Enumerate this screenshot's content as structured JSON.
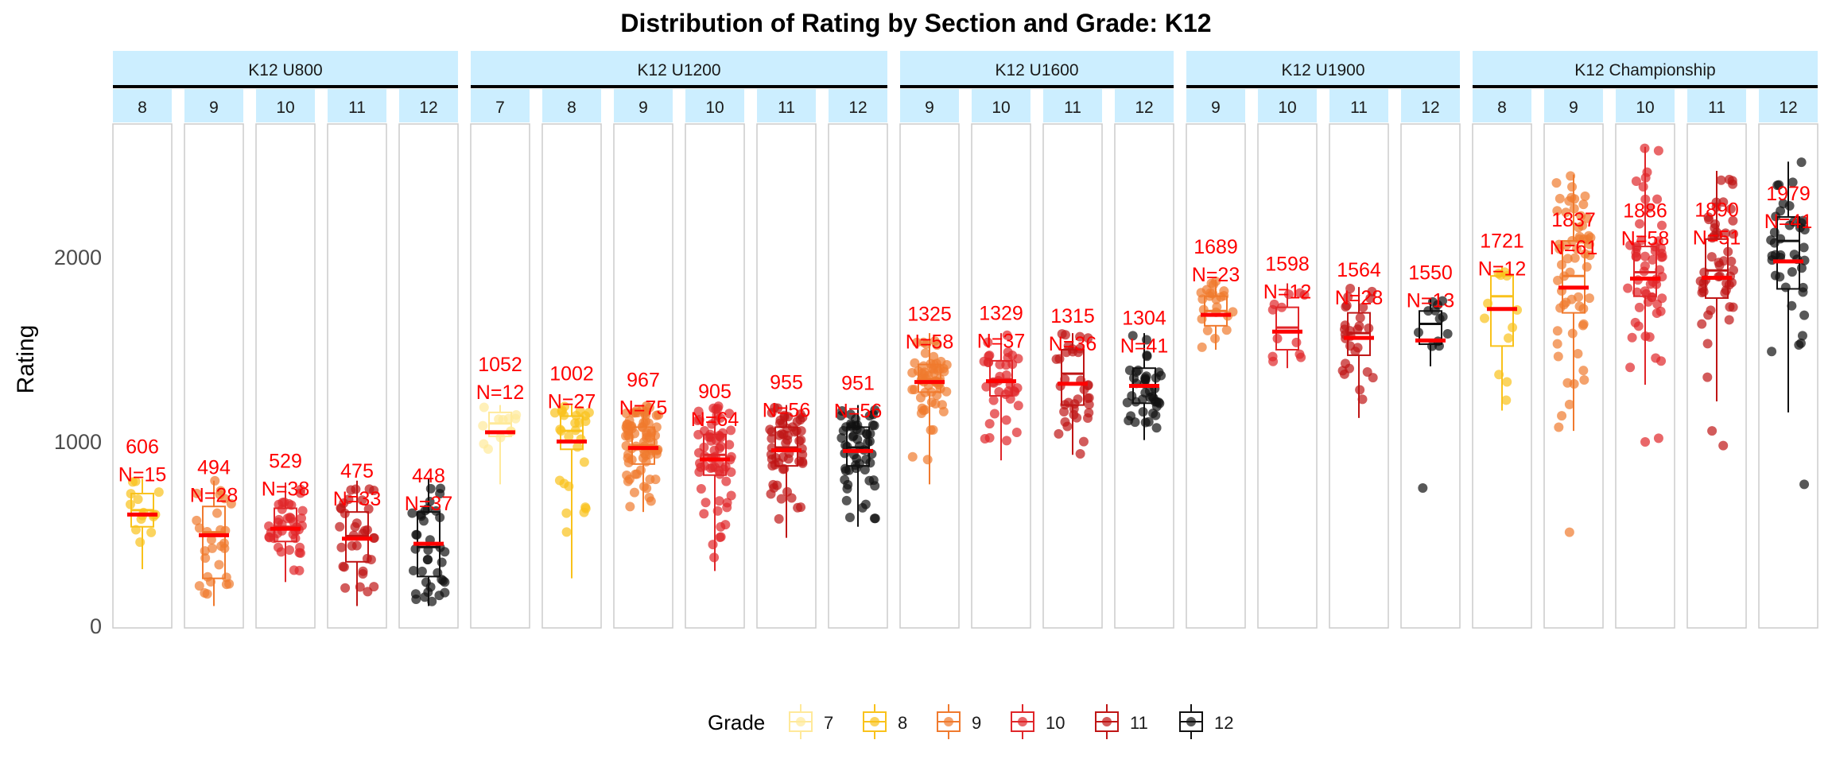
{
  "chart_data": {
    "type": "scatter",
    "title": "Distribution of Rating by Section and Grade: K12",
    "ylabel": "Rating",
    "xlabel": "",
    "ylim": [
      0,
      2600
    ],
    "y_ticks": [
      0,
      1000,
      2000
    ],
    "grid": false,
    "legend": {
      "title": "Grade",
      "placement": "bottom",
      "entries": [
        {
          "label": "7",
          "color": "#FFE99A"
        },
        {
          "label": "8",
          "color": "#F9C21B"
        },
        {
          "label": "9",
          "color": "#F07A2E"
        },
        {
          "label": "10",
          "color": "#E0262A"
        },
        {
          "label": "11",
          "color": "#BF1515"
        },
        {
          "label": "12",
          "color": "#111111"
        }
      ]
    },
    "mean_color": "#FF0000",
    "facets": [
      {
        "section": "K12 U800",
        "panels": [
          {
            "grade": "8",
            "mean": 606,
            "mean_label": "606",
            "n_label": "N=15",
            "color": "#F9C21B",
            "n": 15,
            "q1": 540,
            "median": 630,
            "q3": 720,
            "wlo": 310,
            "whi": 800
          },
          {
            "grade": "9",
            "mean": 494,
            "mean_label": "494",
            "n_label": "N=28",
            "color": "#F07A2E",
            "n": 28,
            "q1": 260,
            "median": 510,
            "q3": 650,
            "wlo": 110,
            "whi": 790
          },
          {
            "grade": "10",
            "mean": 529,
            "mean_label": "529",
            "n_label": "N=38",
            "color": "#E0262A",
            "n": 38,
            "q1": 460,
            "median": 540,
            "q3": 640,
            "wlo": 240,
            "whi": 780
          },
          {
            "grade": "11",
            "mean": 475,
            "mean_label": "475",
            "n_label": "N=33",
            "color": "#BF1515",
            "n": 33,
            "q1": 350,
            "median": 490,
            "q3": 620,
            "wlo": 110,
            "whi": 790
          },
          {
            "grade": "12",
            "mean": 448,
            "mean_label": "448",
            "n_label": "N=37",
            "color": "#111111",
            "n": 37,
            "q1": 270,
            "median": 430,
            "q3": 620,
            "wlo": 110,
            "whi": 800
          }
        ]
      },
      {
        "section": "K12 U1200",
        "panels": [
          {
            "grade": "7",
            "mean": 1052,
            "mean_label": "1052",
            "n_label": "N=12",
            "color": "#FFE99A",
            "n": 12,
            "q1": 1030,
            "median": 1100,
            "q3": 1160,
            "wlo": 770,
            "whi": 1200
          },
          {
            "grade": "8",
            "mean": 1002,
            "mean_label": "1002",
            "n_label": "N=27",
            "color": "#F9C21B",
            "n": 27,
            "q1": 960,
            "median": 1060,
            "q3": 1140,
            "wlo": 260,
            "whi": 1200
          },
          {
            "grade": "9",
            "mean": 967,
            "mean_label": "967",
            "n_label": "N=75",
            "color": "#F07A2E",
            "n": 75,
            "q1": 880,
            "median": 980,
            "q3": 1080,
            "wlo": 620,
            "whi": 1200
          },
          {
            "grade": "10",
            "mean": 905,
            "mean_label": "905",
            "n_label": "N=64",
            "color": "#E0262A",
            "n": 64,
            "q1": 820,
            "median": 930,
            "q3": 1040,
            "wlo": 300,
            "whi": 1200
          },
          {
            "grade": "11",
            "mean": 955,
            "mean_label": "955",
            "n_label": "N=56",
            "color": "#BF1515",
            "n": 56,
            "q1": 870,
            "median": 970,
            "q3": 1080,
            "wlo": 480,
            "whi": 1200
          },
          {
            "grade": "12",
            "mean": 951,
            "mean_label": "951",
            "n_label": "N=56",
            "color": "#111111",
            "n": 56,
            "q1": 870,
            "median": 970,
            "q3": 1080,
            "wlo": 540,
            "whi": 1200
          }
        ]
      },
      {
        "section": "K12 U1600",
        "panels": [
          {
            "grade": "9",
            "mean": 1325,
            "mean_label": "1325",
            "n_label": "N=58",
            "color": "#F07A2E",
            "n": 58,
            "q1": 1270,
            "median": 1340,
            "q3": 1420,
            "wlo": 770,
            "whi": 1590
          },
          {
            "grade": "10",
            "mean": 1329,
            "mean_label": "1329",
            "n_label": "N=37",
            "color": "#E0262A",
            "n": 37,
            "q1": 1250,
            "median": 1340,
            "q3": 1440,
            "wlo": 900,
            "whi": 1590
          },
          {
            "grade": "11",
            "mean": 1315,
            "mean_label": "1315",
            "n_label": "N=36",
            "color": "#BF1515",
            "n": 36,
            "q1": 1200,
            "median": 1370,
            "q3": 1500,
            "wlo": 930,
            "whi": 1590
          },
          {
            "grade": "12",
            "mean": 1304,
            "mean_label": "1304",
            "n_label": "N=41",
            "color": "#111111",
            "n": 41,
            "q1": 1210,
            "median": 1300,
            "q3": 1400,
            "wlo": 1010,
            "whi": 1590
          }
        ]
      },
      {
        "section": "K12 U1900",
        "panels": [
          {
            "grade": "9",
            "mean": 1689,
            "mean_label": "1689",
            "n_label": "N=23",
            "color": "#F07A2E",
            "n": 23,
            "q1": 1630,
            "median": 1710,
            "q3": 1790,
            "wlo": 1500,
            "whi": 1880
          },
          {
            "grade": "10",
            "mean": 1598,
            "mean_label": "1598",
            "n_label": "N=12",
            "color": "#E0262A",
            "n": 12,
            "q1": 1500,
            "median": 1620,
            "q3": 1730,
            "wlo": 1400,
            "whi": 1860
          },
          {
            "grade": "11",
            "mean": 1564,
            "mean_label": "1564",
            "n_label": "N=28",
            "color": "#BF1515",
            "n": 28,
            "q1": 1470,
            "median": 1590,
            "q3": 1700,
            "wlo": 1130,
            "whi": 1840
          },
          {
            "grade": "12",
            "mean": 1550,
            "mean_label": "1550",
            "n_label": "N=13",
            "color": "#111111",
            "n": 13,
            "q1": 1530,
            "median": 1640,
            "q3": 1710,
            "wlo": 1410,
            "whi": 1780,
            "outliers": [
              750
            ]
          }
        ]
      },
      {
        "section": "K12 Championship",
        "panels": [
          {
            "grade": "8",
            "mean": 1721,
            "mean_label": "1721",
            "n_label": "N=12",
            "color": "#F9C21B",
            "n": 12,
            "q1": 1520,
            "median": 1790,
            "q3": 1900,
            "wlo": 1170,
            "whi": 1950
          },
          {
            "grade": "9",
            "mean": 1837,
            "mean_label": "1837",
            "n_label": "N=61",
            "color": "#F07A2E",
            "n": 61,
            "q1": 1700,
            "median": 1900,
            "q3": 2090,
            "wlo": 1060,
            "whi": 2450,
            "outliers": [
              510
            ]
          },
          {
            "grade": "10",
            "mean": 1886,
            "mean_label": "1886",
            "n_label": "N=58",
            "color": "#E0262A",
            "n": 58,
            "q1": 1790,
            "median": 1920,
            "q3": 2060,
            "wlo": 1310,
            "whi": 2600,
            "outliers": [
              1000,
              1020
            ]
          },
          {
            "grade": "11",
            "mean": 1890,
            "mean_label": "1890",
            "n_label": "N=51",
            "color": "#BF1515",
            "n": 51,
            "q1": 1780,
            "median": 1930,
            "q3": 2100,
            "wlo": 1220,
            "whi": 2470,
            "outliers": [
              980,
              1060
            ]
          },
          {
            "grade": "12",
            "mean": 1979,
            "mean_label": "1979",
            "n_label": "N=41",
            "color": "#111111",
            "n": 41,
            "q1": 1830,
            "median": 2090,
            "q3": 2220,
            "wlo": 1160,
            "whi": 2520,
            "outliers": [
              770
            ]
          }
        ]
      }
    ]
  }
}
